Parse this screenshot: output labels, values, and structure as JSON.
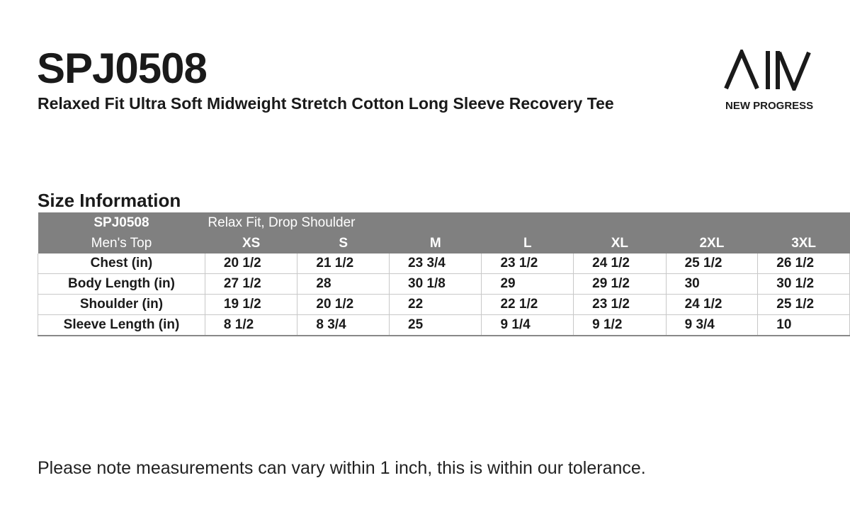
{
  "header": {
    "title": "SPJ0508",
    "subtitle": "Relaxed Fit Ultra Soft Midweight Stretch Cotton Long Sleeve Recovery Tee"
  },
  "logo": {
    "text": "NEW PROGRESS"
  },
  "section_title": "Size Information",
  "table": {
    "caption_row": [
      "SPJ0508",
      "Relax Fit, Drop Shoulder"
    ],
    "columns": [
      "Men's Top",
      "XS",
      "S",
      "M",
      "L",
      "XL",
      "2XL",
      "3XL"
    ],
    "rows": [
      [
        "Chest (in)",
        "20 1/2",
        "21 1/2",
        "23 3/4",
        "23 1/2",
        "24 1/2",
        "25 1/2",
        "26 1/2"
      ],
      [
        "Body Length (in)",
        "27 1/2",
        "28",
        "30 1/8",
        "29",
        "29 1/2",
        "30",
        "30 1/2"
      ],
      [
        "Shoulder (in)",
        "19 1/2",
        "20 1/2",
        "22",
        "22 1/2",
        "23 1/2",
        "24 1/2",
        "25 1/2"
      ],
      [
        "Sleeve Length (in)",
        "8 1/2",
        "8 3/4",
        "25",
        "9 1/4",
        "9 1/2",
        "9 3/4",
        "10"
      ]
    ]
  },
  "note": "Please note measurements can vary within 1 inch, this is within our tolerance."
}
